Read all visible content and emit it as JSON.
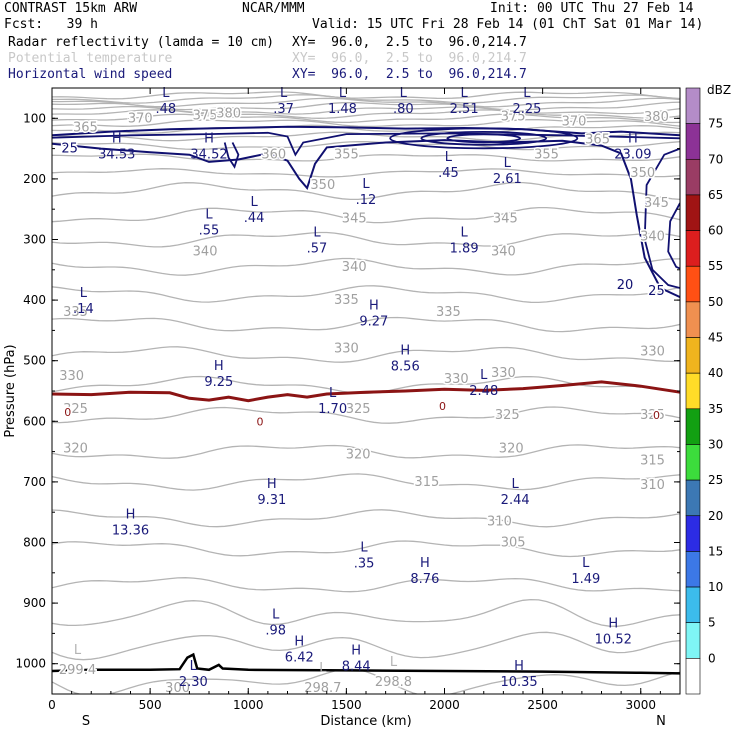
{
  "header": {
    "title": "CONTRAST 15km ARW",
    "org": "NCAR/MMM",
    "init": "Init: 00 UTC Thu 27 Feb 14",
    "fcst": "Fcst:   39 h",
    "valid": "Valid: 15 UTC Fri 28 Feb 14 (01 ChT Sat 01 Mar 14)",
    "fields": [
      {
        "label": "Radar reflectivity (lamda = 10 cm)",
        "xy": "XY=  96.0,  2.5 to  96.0,214.7",
        "color": "#000000"
      },
      {
        "label": "Potential temperature",
        "xy": "XY=  96.0,  2.5 to  96.0,214.7",
        "color": "#c8c8c8"
      },
      {
        "label": "Horizontal wind speed",
        "xy": "XY=  96.0,  2.5 to  96.0,214.7",
        "color": "#1a1a7a"
      }
    ]
  },
  "chart_data": {
    "type": "cross-section",
    "xlabel": "Distance (km)",
    "ylabel": "Pressure (hPa)",
    "xlim": [
      0,
      3200
    ],
    "ylim": [
      1050,
      50
    ],
    "x_ticks": [
      0,
      500,
      1000,
      1500,
      2000,
      2500,
      3000
    ],
    "y_ticks": [
      100,
      200,
      300,
      400,
      500,
      600,
      700,
      800,
      900,
      1000
    ],
    "x_end_labels": {
      "left": "S",
      "right": "N"
    },
    "colorbar": {
      "title": "dBZ",
      "levels": [
        0,
        5,
        10,
        15,
        20,
        25,
        30,
        35,
        40,
        45,
        50,
        55,
        60,
        65,
        70,
        75
      ],
      "colors": [
        "#ffffff",
        "#7ff5f5",
        "#3cbcec",
        "#3c78e6",
        "#2c2ce4",
        "#3c78b4",
        "#3cdc3c",
        "#12a012",
        "#ffdc28",
        "#f0b41e",
        "#f09050",
        "#ff5014",
        "#dc1e1e",
        "#a01414",
        "#9a3c64",
        "#8c3296",
        "#b48cc8"
      ]
    },
    "wind_labels": [
      {
        "t": "L",
        "v": ".48",
        "x": 580,
        "p": 75
      },
      {
        "t": "L",
        "v": ".37",
        "x": 1180,
        "p": 75
      },
      {
        "t": "L",
        "v": "1.48",
        "x": 1480,
        "p": 75
      },
      {
        "t": "L",
        "v": ".80",
        "x": 1790,
        "p": 75
      },
      {
        "t": "L",
        "v": "2.51",
        "x": 2100,
        "p": 75
      },
      {
        "t": "L",
        "v": "2.25",
        "x": 2420,
        "p": 75
      },
      {
        "t": "H",
        "v": "34.53",
        "x": 330,
        "p": 150
      },
      {
        "t": "H",
        "v": "34.52",
        "x": 800,
        "p": 150
      },
      {
        "t": "H",
        "v": "23.09",
        "x": 2960,
        "p": 150
      },
      {
        "t": "L",
        "v": ".45",
        "x": 2020,
        "p": 180
      },
      {
        "t": "L",
        "v": "2.61",
        "x": 2320,
        "p": 190
      },
      {
        "t": "L",
        "v": ".12",
        "x": 1600,
        "p": 225
      },
      {
        "t": "L",
        "v": ".44",
        "x": 1030,
        "p": 255
      },
      {
        "t": "L",
        "v": ".55",
        "x": 800,
        "p": 275
      },
      {
        "t": "L",
        "v": ".57",
        "x": 1350,
        "p": 305
      },
      {
        "t": "L",
        "v": "1.89",
        "x": 2100,
        "p": 305
      },
      {
        "t": "L",
        "v": ".14",
        "x": 160,
        "p": 405
      },
      {
        "t": "H",
        "v": "9.27",
        "x": 1640,
        "p": 425
      },
      {
        "t": "H",
        "v": "8.56",
        "x": 1800,
        "p": 500
      },
      {
        "t": "H",
        "v": "9.25",
        "x": 850,
        "p": 525
      },
      {
        "t": "L",
        "v": "2.48",
        "x": 2200,
        "p": 540
      },
      {
        "t": "L",
        "v": "1.70",
        "x": 1430,
        "p": 570
      },
      {
        "t": "H",
        "v": "9.31",
        "x": 1120,
        "p": 720
      },
      {
        "t": "L",
        "v": "2.44",
        "x": 2360,
        "p": 720
      },
      {
        "t": "H",
        "v": "13.36",
        "x": 400,
        "p": 770
      },
      {
        "t": "L",
        "v": ".35",
        "x": 1590,
        "p": 825
      },
      {
        "t": "H",
        "v": "8.76",
        "x": 1900,
        "p": 850
      },
      {
        "t": "L",
        "v": "1.49",
        "x": 2720,
        "p": 850
      },
      {
        "t": "L",
        "v": ".98",
        "x": 1140,
        "p": 935
      },
      {
        "t": "H",
        "v": "10.52",
        "x": 2860,
        "p": 950
      },
      {
        "t": "H",
        "v": "6.42",
        "x": 1260,
        "p": 980
      },
      {
        "t": "H",
        "v": "8.44",
        "x": 1550,
        "p": 995
      },
      {
        "t": "L",
        "v": "2.30",
        "x": 720,
        "p": 1020
      },
      {
        "t": "H",
        "v": "10.35",
        "x": 2380,
        "p": 1020
      }
    ],
    "wind_contour_labels": [
      {
        "v": "25",
        "x": 90,
        "p": 150
      },
      {
        "v": "20",
        "x": 2920,
        "p": 375
      },
      {
        "v": "25",
        "x": 3080,
        "p": 385
      }
    ],
    "theta_labels": [
      {
        "t": "",
        "v": "365",
        "x": 170,
        "p": 115
      },
      {
        "t": "",
        "v": "370",
        "x": 450,
        "p": 100
      },
      {
        "t": "",
        "v": "375",
        "x": 780,
        "p": 95
      },
      {
        "t": "",
        "v": "380",
        "x": 900,
        "p": 92
      },
      {
        "t": "",
        "v": "375",
        "x": 2350,
        "p": 97
      },
      {
        "t": "",
        "v": "370",
        "x": 2660,
        "p": 105
      },
      {
        "t": "",
        "v": "380",
        "x": 3080,
        "p": 98
      },
      {
        "t": "",
        "v": "365",
        "x": 2780,
        "p": 135
      },
      {
        "t": "",
        "v": "360",
        "x": 1130,
        "p": 160
      },
      {
        "t": "",
        "v": "355",
        "x": 1500,
        "p": 160
      },
      {
        "t": "",
        "v": "355",
        "x": 2520,
        "p": 160
      },
      {
        "t": "",
        "v": "350",
        "x": 3010,
        "p": 190
      },
      {
        "t": "",
        "v": "345",
        "x": 3080,
        "p": 240
      },
      {
        "t": "",
        "v": "350",
        "x": 1380,
        "p": 210
      },
      {
        "t": "",
        "v": "345",
        "x": 1540,
        "p": 265
      },
      {
        "t": "",
        "v": "345",
        "x": 2310,
        "p": 265
      },
      {
        "t": "",
        "v": "340",
        "x": 3060,
        "p": 295
      },
      {
        "t": "",
        "v": "340",
        "x": 780,
        "p": 320
      },
      {
        "t": "",
        "v": "340",
        "x": 1540,
        "p": 345
      },
      {
        "t": "",
        "v": "340",
        "x": 2300,
        "p": 320
      },
      {
        "t": "",
        "v": "335",
        "x": 120,
        "p": 420
      },
      {
        "t": "",
        "v": "335",
        "x": 1500,
        "p": 400
      },
      {
        "t": "",
        "v": "335",
        "x": 2020,
        "p": 420
      },
      {
        "t": "",
        "v": "330",
        "x": 1500,
        "p": 480
      },
      {
        "t": "",
        "v": "330",
        "x": 2060,
        "p": 530
      },
      {
        "t": "",
        "v": "330",
        "x": 2300,
        "p": 520
      },
      {
        "t": "",
        "v": "330",
        "x": 3060,
        "p": 485
      },
      {
        "t": "",
        "v": "330",
        "x": 100,
        "p": 525
      },
      {
        "t": "",
        "v": "325",
        "x": 120,
        "p": 580
      },
      {
        "t": "",
        "v": "325",
        "x": 1560,
        "p": 580
      },
      {
        "t": "",
        "v": "325",
        "x": 2320,
        "p": 590
      },
      {
        "t": "",
        "v": "325",
        "x": 3060,
        "p": 590
      },
      {
        "t": "",
        "v": "320",
        "x": 120,
        "p": 645
      },
      {
        "t": "",
        "v": "320",
        "x": 1560,
        "p": 655
      },
      {
        "t": "",
        "v": "320",
        "x": 2340,
        "p": 645
      },
      {
        "t": "",
        "v": "315",
        "x": 3060,
        "p": 665
      },
      {
        "t": "",
        "v": "315",
        "x": 1910,
        "p": 700
      },
      {
        "t": "",
        "v": "310",
        "x": 3060,
        "p": 705
      },
      {
        "t": "",
        "v": "310",
        "x": 2280,
        "p": 765
      },
      {
        "t": "",
        "v": "305",
        "x": 2350,
        "p": 800
      },
      {
        "t": "L",
        "v": "299.4",
        "x": 130,
        "p": 1010
      },
      {
        "t": "L",
        "v": "298.7",
        "x": 1380,
        "p": 1040
      },
      {
        "t": "L",
        "v": "298.8",
        "x": 1740,
        "p": 1030
      },
      {
        "t": "",
        "v": "300",
        "x": 640,
        "p": 1040
      }
    ],
    "zero_labels": [
      {
        "v": "0",
        "x": 80,
        "p": 585
      },
      {
        "v": "0",
        "x": 1060,
        "p": 600
      },
      {
        "v": "0",
        "x": 1990,
        "p": 575
      },
      {
        "v": "0",
        "x": 3080,
        "p": 590
      }
    ]
  }
}
